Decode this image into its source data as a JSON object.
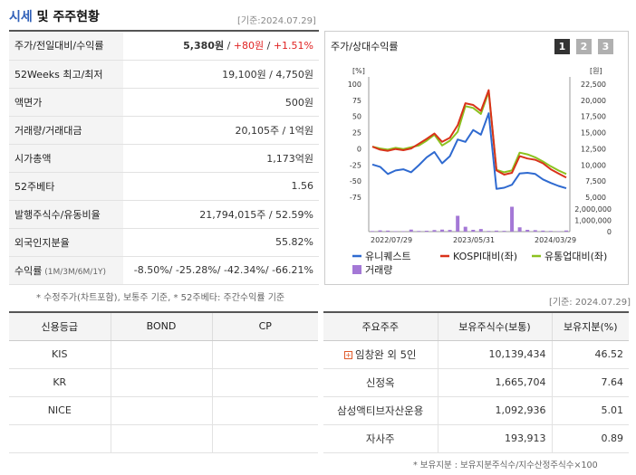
{
  "header": {
    "title_a": "시세",
    "title_b": " 및 주주현황",
    "date": "[기준:2024.07.29]"
  },
  "summary": {
    "price": {
      "label": "주가/전일대비/수익률",
      "price": "5,380원",
      "sep1": " / ",
      "change": "+80원",
      "sep2": " / ",
      "rate": "+1.51%"
    },
    "week52": {
      "label": "52Weeks 최고/최저",
      "value": "19,100원 / 4,750원"
    },
    "par": {
      "label": "액면가",
      "value": "500원"
    },
    "volume": {
      "label": "거래량/거래대금",
      "value": "20,105주 / 1억원"
    },
    "mcap": {
      "label": "시가총액",
      "value": "1,173억원"
    },
    "beta": {
      "label": "52주베타",
      "value": "1.56"
    },
    "shares": {
      "label": "발행주식수/유동비율",
      "value": "21,794,015주 / 52.59%"
    },
    "foreign": {
      "label": "외국인지분율",
      "value": "55.82%"
    },
    "returns": {
      "label": "수익률",
      "sub": " (1M/3M/6M/1Y)",
      "value": "-8.50%/ -25.28%/ -42.34%/ -66.21%"
    }
  },
  "note1": "* 수정주가(차트포함), 보통주 기준, * 52주베타: 주간수익률 기준",
  "chart_panel": {
    "title": "주가/상대수익률",
    "buttons": [
      "1",
      "2",
      "3"
    ],
    "btn_colors": [
      "#333333",
      "#b0b0b0",
      "#b0b0b0"
    ]
  },
  "chart_data": {
    "type": "line",
    "y_left_unit": "[%]",
    "y_right_unit": "[원]",
    "y_left_ticks": [
      "100",
      "75",
      "50",
      "25",
      "0",
      "-25",
      "-50",
      "-75"
    ],
    "y_right_ticks": [
      "22,500",
      "20,000",
      "17,500",
      "15,000",
      "12,500",
      "10,000",
      "7,500",
      "5,000"
    ],
    "vol_ticks": [
      "2,000,000",
      "1,000,000",
      "0"
    ],
    "x_labels": [
      "2022/07/29",
      "2023/05/31",
      "2024/03/29"
    ],
    "ylim_left": [
      -85,
      105
    ],
    "vol_max": 2000000,
    "series": [
      {
        "name": "유니퀘스트",
        "color": "#2f6ad0",
        "values": [
          -30,
          -34,
          -46,
          -40,
          -38,
          -43,
          -31,
          -18,
          -9,
          -28,
          -16,
          12,
          8,
          28,
          20,
          56,
          -71,
          -69,
          -64,
          -45,
          -44,
          -46,
          -55,
          -61,
          -66,
          -70
        ]
      },
      {
        "name": "KOSPI대비(좌)",
        "color": "#d9321a",
        "values": [
          0,
          -5,
          -7,
          -4,
          -6,
          -3,
          5,
          13,
          22,
          8,
          15,
          36,
          73,
          70,
          60,
          95,
          -40,
          -47,
          -44,
          -16,
          -20,
          -22,
          -28,
          -38,
          -45,
          -52
        ]
      },
      {
        "name": "유통업대비(좌)",
        "color": "#8cc21f",
        "values": [
          0,
          -3,
          -5,
          -2,
          -4,
          -1,
          2,
          10,
          20,
          2,
          10,
          25,
          68,
          65,
          55,
          92,
          -39,
          -43,
          -40,
          -10,
          -13,
          -18,
          -25,
          -33,
          -40,
          -46
        ]
      },
      {
        "name": "거래량",
        "color": "#a478d6",
        "values": [
          50000,
          110000,
          90000,
          40000,
          40000,
          180000,
          60000,
          80000,
          140000,
          180000,
          150000,
          1400000,
          430000,
          160000,
          230000,
          60000,
          90000,
          70000,
          2200000,
          380000,
          160000,
          130000,
          90000,
          60000,
          40000,
          100000
        ]
      }
    ]
  },
  "date2": "[기준: 2024.07.29]",
  "credit": {
    "headers": [
      "신용등급",
      "BOND",
      "CP"
    ],
    "rows": [
      [
        "KIS",
        "",
        ""
      ],
      [
        "KR",
        "",
        ""
      ],
      [
        "NICE",
        "",
        ""
      ]
    ]
  },
  "holders": {
    "headers": [
      "주요주주",
      "보유주식수(보통)",
      "보유지분(%)"
    ],
    "rows": [
      [
        "임창완 외 5인",
        "10,139,434",
        "46.52"
      ],
      [
        "신정옥",
        "1,665,704",
        "7.64"
      ],
      [
        "삼성액티브자산운용",
        "1,092,936",
        "5.01"
      ],
      [
        "자사주",
        "193,913",
        "0.89"
      ]
    ]
  },
  "note2": "* 보유지분 : 보유지분주식수/지수산정주식수×100"
}
